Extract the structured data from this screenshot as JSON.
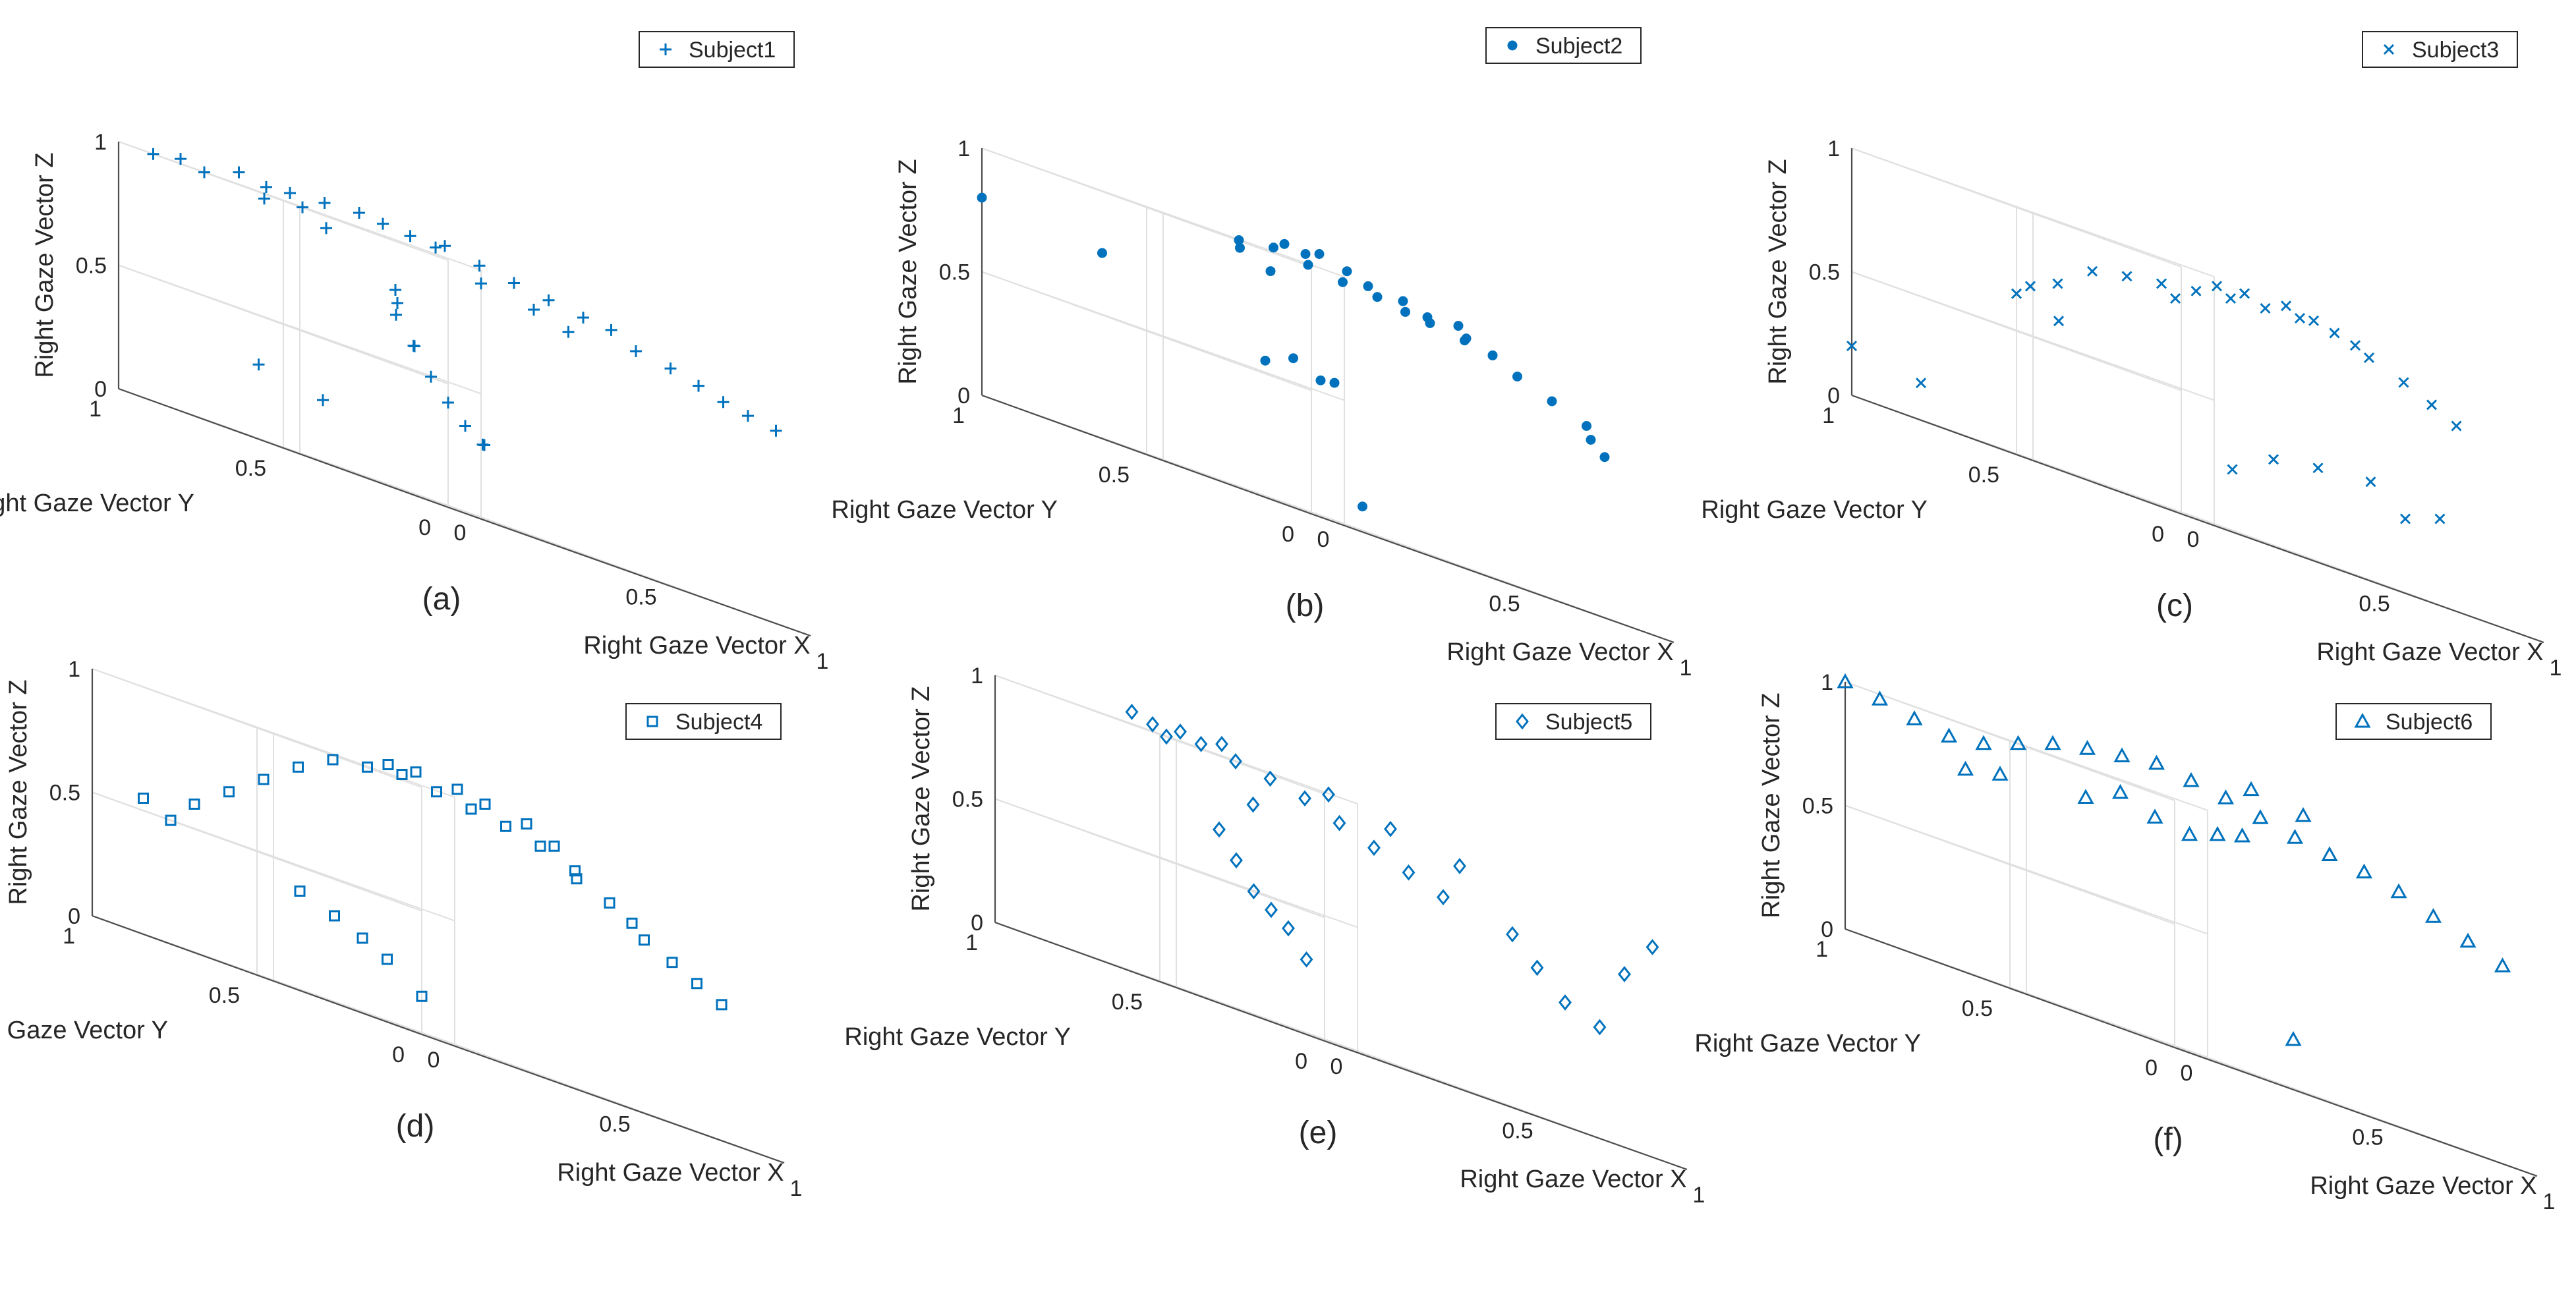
{
  "chart_data": [
    {
      "type": "scatter3d",
      "caption": "(a)",
      "legend": "Subject1",
      "marker": "plus",
      "xlabel": "Right Gaze Vector X",
      "ylabel": "Right Gaze Vector Y",
      "zlabel": "Right Gaze Vector Z",
      "xticks": [
        "0",
        "0.5",
        "1"
      ],
      "yticks": [
        "0",
        "0.5",
        "1"
      ],
      "zticks": [
        "0",
        "0.5",
        "1"
      ],
      "xlim": [
        0,
        1
      ],
      "ylim": [
        0,
        1
      ],
      "zlim": [
        0,
        1
      ],
      "points": [
        {
          "x": 0.05,
          "y": 0.95,
          "z": 1.0
        },
        {
          "x": 0.08,
          "y": 0.9,
          "z": 1.02
        },
        {
          "x": 0.1,
          "y": 0.85,
          "z": 1.0
        },
        {
          "x": 0.15,
          "y": 0.8,
          "z": 1.05
        },
        {
          "x": 0.18,
          "y": 0.75,
          "z": 1.03
        },
        {
          "x": 0.2,
          "y": 0.7,
          "z": 1.04
        },
        {
          "x": 0.25,
          "y": 0.65,
          "z": 1.05
        },
        {
          "x": 0.3,
          "y": 0.6,
          "z": 1.06
        },
        {
          "x": 0.32,
          "y": 0.55,
          "z": 1.05
        },
        {
          "x": 0.35,
          "y": 0.5,
          "z": 1.04
        },
        {
          "x": 0.4,
          "y": 0.45,
          "z": 1.05
        },
        {
          "x": 0.42,
          "y": 0.5,
          "z": 1.03
        },
        {
          "x": 0.45,
          "y": 0.4,
          "z": 1.02
        },
        {
          "x": 0.5,
          "y": 0.35,
          "z": 1.0
        },
        {
          "x": 0.55,
          "y": 0.3,
          "z": 0.98
        },
        {
          "x": 0.6,
          "y": 0.25,
          "z": 0.96
        },
        {
          "x": 0.65,
          "y": 0.22,
          "z": 0.95
        },
        {
          "x": 0.7,
          "y": 0.2,
          "z": 0.9
        },
        {
          "x": 0.75,
          "y": 0.15,
          "z": 0.88
        },
        {
          "x": 0.8,
          "y": 0.12,
          "z": 0.85
        },
        {
          "x": 0.85,
          "y": 0.1,
          "z": 0.82
        },
        {
          "x": 0.9,
          "y": 0.08,
          "z": 0.8
        },
        {
          "x": 0.95,
          "y": 0.05,
          "z": 0.78
        },
        {
          "x": 0.4,
          "y": 0.6,
          "z": 0.8
        },
        {
          "x": 0.42,
          "y": 0.62,
          "z": 0.7
        },
        {
          "x": 0.45,
          "y": 0.6,
          "z": 0.6
        },
        {
          "x": 0.48,
          "y": 0.58,
          "z": 0.5
        },
        {
          "x": 0.5,
          "y": 0.55,
          "z": 0.42
        },
        {
          "x": 0.52,
          "y": 0.52,
          "z": 0.35
        },
        {
          "x": 0.55,
          "y": 0.5,
          "z": 0.3
        },
        {
          "x": 0.3,
          "y": 0.7,
          "z": 0.95
        },
        {
          "x": 0.28,
          "y": 0.75,
          "z": 1.0
        },
        {
          "x": 0.22,
          "y": 0.8,
          "z": 0.98
        },
        {
          "x": 0.6,
          "y": 0.4,
          "z": 0.92
        },
        {
          "x": 0.65,
          "y": 0.35,
          "z": 0.88
        },
        {
          "x": 0.38,
          "y": 0.52,
          "z": 0.6
        },
        {
          "x": 0.36,
          "y": 0.55,
          "z": 0.75
        },
        {
          "x": 0.6,
          "y": 0.55,
          "z": 0.3
        },
        {
          "x": 0.2,
          "y": 0.6,
          "z": 0.25
        },
        {
          "x": 0.5,
          "y": 0.45,
          "z": 0.95
        },
        {
          "x": 0.25,
          "y": 0.85,
          "z": 0.3
        }
      ]
    },
    {
      "type": "scatter3d",
      "caption": "(b)",
      "legend": "Subject2",
      "marker": "dot",
      "xlabel": "Right Gaze Vector X",
      "ylabel": "Right Gaze Vector Y",
      "zlabel": "Right Gaze Vector Z",
      "xticks": [
        "0",
        "0.5",
        "1"
      ],
      "yticks": [
        "0",
        "0.5",
        "1"
      ],
      "zticks": [
        "0",
        "0.5",
        "1"
      ],
      "xlim": [
        0,
        1
      ],
      "ylim": [
        0,
        1
      ],
      "zlim": [
        0,
        1
      ],
      "points": [
        {
          "x": 0.3,
          "y": 0.55,
          "z": 1.0
        },
        {
          "x": 0.35,
          "y": 0.5,
          "z": 1.02
        },
        {
          "x": 0.4,
          "y": 0.45,
          "z": 1.0
        },
        {
          "x": 0.45,
          "y": 0.4,
          "z": 0.98
        },
        {
          "x": 0.5,
          "y": 0.35,
          "z": 0.97
        },
        {
          "x": 0.55,
          "y": 0.32,
          "z": 0.95
        },
        {
          "x": 0.6,
          "y": 0.3,
          "z": 0.94
        },
        {
          "x": 0.65,
          "y": 0.25,
          "z": 0.92
        },
        {
          "x": 0.7,
          "y": 0.22,
          "z": 0.9
        },
        {
          "x": 0.75,
          "y": 0.2,
          "z": 0.85
        },
        {
          "x": 0.8,
          "y": 0.15,
          "z": 0.8
        },
        {
          "x": 0.38,
          "y": 0.5,
          "z": 1.05
        },
        {
          "x": 0.42,
          "y": 0.48,
          "z": 1.04
        },
        {
          "x": 0.48,
          "y": 0.42,
          "z": 1.03
        },
        {
          "x": 0.52,
          "y": 0.4,
          "z": 1.0
        },
        {
          "x": 0.33,
          "y": 0.58,
          "z": 0.97
        },
        {
          "x": 0.58,
          "y": 0.36,
          "z": 0.99
        },
        {
          "x": 0.62,
          "y": 0.33,
          "z": 0.96
        },
        {
          "x": 0.7,
          "y": 0.3,
          "z": 0.93
        },
        {
          "x": 0.85,
          "y": 0.1,
          "z": 0.75
        },
        {
          "x": 0.88,
          "y": 0.12,
          "z": 0.7
        },
        {
          "x": 0.9,
          "y": 0.1,
          "z": 0.65
        },
        {
          "x": 0.45,
          "y": 0.55,
          "z": 0.6
        },
        {
          "x": 0.48,
          "y": 0.5,
          "z": 0.55
        },
        {
          "x": 0.5,
          "y": 0.48,
          "z": 0.56
        },
        {
          "x": 0.4,
          "y": 0.58,
          "z": 0.55
        },
        {
          "x": 0.0,
          "y": 1.0,
          "z": 0.8
        },
        {
          "x": 0.15,
          "y": 0.8,
          "z": 0.75
        },
        {
          "x": 0.55,
          "y": 0.45,
          "z": 0.1
        },
        {
          "x": 0.36,
          "y": 0.52,
          "z": 0.92
        },
        {
          "x": 0.44,
          "y": 0.46,
          "z": 1.06
        },
        {
          "x": 0.66,
          "y": 0.28,
          "z": 0.97
        }
      ]
    },
    {
      "type": "scatter3d",
      "caption": "(c)",
      "legend": "Subject3",
      "marker": "cross",
      "xlabel": "Right Gaze Vector X",
      "ylabel": "Right Gaze Vector Y",
      "zlabel": "Right Gaze Vector Z",
      "xticks": [
        "0",
        "0.5",
        "1"
      ],
      "yticks": [
        "0",
        "0.5",
        "1"
      ],
      "zticks": [
        "0",
        "0.5",
        "1"
      ],
      "xlim": [
        0,
        1
      ],
      "ylim": [
        0,
        1
      ],
      "zlim": [
        0,
        1
      ],
      "points": [
        {
          "x": 0.4,
          "y": 0.5,
          "z": 0.9
        },
        {
          "x": 0.45,
          "y": 0.45,
          "z": 0.92
        },
        {
          "x": 0.5,
          "y": 0.4,
          "z": 0.94
        },
        {
          "x": 0.55,
          "y": 0.35,
          "z": 0.95
        },
        {
          "x": 0.6,
          "y": 0.3,
          "z": 0.96
        },
        {
          "x": 0.65,
          "y": 0.25,
          "z": 0.95
        },
        {
          "x": 0.7,
          "y": 0.2,
          "z": 0.9
        },
        {
          "x": 0.75,
          "y": 0.15,
          "z": 0.85
        },
        {
          "x": 0.8,
          "y": 0.12,
          "z": 0.8
        },
        {
          "x": 0.85,
          "y": 0.1,
          "z": 0.75
        },
        {
          "x": 0.35,
          "y": 0.55,
          "z": 0.88
        },
        {
          "x": 0.3,
          "y": 0.6,
          "z": 0.85
        },
        {
          "x": 0.25,
          "y": 0.65,
          "z": 0.75
        },
        {
          "x": 0.22,
          "y": 0.7,
          "z": 0.7
        },
        {
          "x": 0.2,
          "y": 0.72,
          "z": 0.65
        },
        {
          "x": 0.28,
          "y": 0.68,
          "z": 0.6
        },
        {
          "x": 0.48,
          "y": 0.42,
          "z": 0.97
        },
        {
          "x": 0.52,
          "y": 0.38,
          "z": 0.98
        },
        {
          "x": 0.58,
          "y": 0.32,
          "z": 0.99
        },
        {
          "x": 0.62,
          "y": 0.28,
          "z": 0.97
        },
        {
          "x": 0.0,
          "y": 1.0,
          "z": 0.2
        },
        {
          "x": 0.1,
          "y": 0.9,
          "z": 0.15
        },
        {
          "x": 0.55,
          "y": 0.45,
          "z": 0.25
        },
        {
          "x": 0.6,
          "y": 0.38,
          "z": 0.35
        },
        {
          "x": 0.65,
          "y": 0.3,
          "z": 0.38
        },
        {
          "x": 0.75,
          "y": 0.25,
          "z": 0.4
        },
        {
          "x": 0.8,
          "y": 0.2,
          "z": 0.3
        },
        {
          "x": 0.85,
          "y": 0.15,
          "z": 0.35
        },
        {
          "x": 0.42,
          "y": 0.48,
          "z": 0.86
        },
        {
          "x": 0.68,
          "y": 0.22,
          "z": 0.93
        }
      ]
    },
    {
      "type": "scatter3d",
      "caption": "(d)",
      "legend": "Subject4",
      "marker": "square",
      "xlabel": "Right Gaze Vector X",
      "ylabel": "Right Gaze Vector Y",
      "zlabel": "Right Gaze Vector Z",
      "xticks": [
        "0",
        "0.5",
        "1"
      ],
      "yticks": [
        "0",
        "0.5",
        "1"
      ],
      "zticks": [
        "0",
        "0.5",
        "1"
      ],
      "xlim": [
        0,
        1
      ],
      "ylim": [
        0,
        1
      ],
      "zlim": [
        0,
        1
      ],
      "points": [
        {
          "x": 0.35,
          "y": 0.55,
          "z": 1.0
        },
        {
          "x": 0.4,
          "y": 0.5,
          "z": 1.02
        },
        {
          "x": 0.45,
          "y": 0.45,
          "z": 1.0
        },
        {
          "x": 0.5,
          "y": 0.4,
          "z": 0.98
        },
        {
          "x": 0.55,
          "y": 0.35,
          "z": 0.96
        },
        {
          "x": 0.6,
          "y": 0.3,
          "z": 0.93
        },
        {
          "x": 0.65,
          "y": 0.25,
          "z": 0.88
        },
        {
          "x": 0.7,
          "y": 0.2,
          "z": 0.8
        },
        {
          "x": 0.75,
          "y": 0.15,
          "z": 0.7
        },
        {
          "x": 0.8,
          "y": 0.12,
          "z": 0.65
        },
        {
          "x": 0.85,
          "y": 0.1,
          "z": 0.6
        },
        {
          "x": 0.9,
          "y": 0.08,
          "z": 0.55
        },
        {
          "x": 0.3,
          "y": 0.6,
          "z": 0.98
        },
        {
          "x": 0.25,
          "y": 0.65,
          "z": 0.9
        },
        {
          "x": 0.2,
          "y": 0.7,
          "z": 0.8
        },
        {
          "x": 0.15,
          "y": 0.75,
          "z": 0.7
        },
        {
          "x": 0.1,
          "y": 0.8,
          "z": 0.6
        },
        {
          "x": 0.05,
          "y": 0.9,
          "z": 0.55
        },
        {
          "x": 0.08,
          "y": 0.85,
          "z": 0.5
        },
        {
          "x": 0.3,
          "y": 0.7,
          "z": 0.4
        },
        {
          "x": 0.35,
          "y": 0.65,
          "z": 0.35
        },
        {
          "x": 0.4,
          "y": 0.62,
          "z": 0.3
        },
        {
          "x": 0.45,
          "y": 0.6,
          "z": 0.25
        },
        {
          "x": 0.5,
          "y": 0.55,
          "z": 0.15
        },
        {
          "x": 0.42,
          "y": 0.48,
          "z": 1.05
        },
        {
          "x": 0.48,
          "y": 0.42,
          "z": 1.04
        },
        {
          "x": 0.52,
          "y": 0.38,
          "z": 1.02
        },
        {
          "x": 0.58,
          "y": 0.32,
          "z": 1.0
        },
        {
          "x": 0.38,
          "y": 0.52,
          "z": 1.04
        },
        {
          "x": 0.62,
          "y": 0.28,
          "z": 0.95
        },
        {
          "x": 0.7,
          "y": 0.3,
          "z": 0.85
        },
        {
          "x": 0.78,
          "y": 0.22,
          "z": 0.75
        }
      ]
    },
    {
      "type": "scatter3d",
      "caption": "(e)",
      "legend": "Subject5",
      "marker": "diamond",
      "xlabel": "Right Gaze Vector X",
      "ylabel": "Right Gaze Vector Y",
      "zlabel": "Right Gaze Vector Z",
      "xticks": [
        "0",
        "0.5",
        "1"
      ],
      "yticks": [
        "0",
        "0.5",
        "1"
      ],
      "zticks": [
        "0",
        "0.5",
        "1"
      ],
      "xlim": [
        0,
        1
      ],
      "ylim": [
        0,
        1
      ],
      "zlim": [
        0,
        1
      ],
      "points": [
        {
          "x": 0.2,
          "y": 0.7,
          "z": 1.0
        },
        {
          "x": 0.25,
          "y": 0.65,
          "z": 1.02
        },
        {
          "x": 0.3,
          "y": 0.6,
          "z": 1.0
        },
        {
          "x": 0.35,
          "y": 0.55,
          "z": 0.98
        },
        {
          "x": 0.4,
          "y": 0.5,
          "z": 0.95
        },
        {
          "x": 0.45,
          "y": 0.45,
          "z": 0.9
        },
        {
          "x": 0.5,
          "y": 0.4,
          "z": 0.85
        },
        {
          "x": 0.55,
          "y": 0.35,
          "z": 0.8
        },
        {
          "x": 0.6,
          "y": 0.3,
          "z": 0.75
        },
        {
          "x": 0.3,
          "y": 0.65,
          "z": 0.7
        },
        {
          "x": 0.32,
          "y": 0.62,
          "z": 0.6
        },
        {
          "x": 0.35,
          "y": 0.6,
          "z": 0.5
        },
        {
          "x": 0.38,
          "y": 0.58,
          "z": 0.45
        },
        {
          "x": 0.4,
          "y": 0.55,
          "z": 0.4
        },
        {
          "x": 0.45,
          "y": 0.55,
          "z": 0.3
        },
        {
          "x": 0.7,
          "y": 0.2,
          "z": 0.7
        },
        {
          "x": 0.75,
          "y": 0.18,
          "z": 0.6
        },
        {
          "x": 0.8,
          "y": 0.15,
          "z": 0.5
        },
        {
          "x": 0.85,
          "y": 0.1,
          "z": 0.45
        },
        {
          "x": 0.9,
          "y": 0.08,
          "z": 0.7
        },
        {
          "x": 0.95,
          "y": 0.05,
          "z": 0.85
        },
        {
          "x": 0.15,
          "y": 0.75,
          "z": 1.05
        },
        {
          "x": 0.18,
          "y": 0.72,
          "z": 1.03
        },
        {
          "x": 0.22,
          "y": 0.68,
          "z": 1.04
        },
        {
          "x": 0.28,
          "y": 0.62,
          "z": 1.05
        },
        {
          "x": 0.42,
          "y": 0.45,
          "z": 1.0
        },
        {
          "x": 0.5,
          "y": 0.35,
          "z": 0.95
        },
        {
          "x": 0.6,
          "y": 0.25,
          "z": 0.9
        },
        {
          "x": 0.33,
          "y": 0.58,
          "z": 0.85
        }
      ]
    },
    {
      "type": "scatter3d",
      "caption": "(f)",
      "legend": "Subject6",
      "marker": "triangle",
      "xlabel": "Right Gaze Vector X",
      "ylabel": "Right Gaze Vector Y",
      "zlabel": "Right Gaze Vector Z",
      "xticks": [
        "0",
        "0.5",
        "1"
      ],
      "yticks": [
        "0",
        "0.5",
        "1"
      ],
      "zticks": [
        "0",
        "0.5",
        "1"
      ],
      "xlim": [
        0,
        1
      ],
      "ylim": [
        0,
        1
      ],
      "zlim": [
        0,
        1
      ],
      "points": [
        {
          "x": 0.0,
          "y": 1.0,
          "z": 1.0
        },
        {
          "x": 0.05,
          "y": 0.95,
          "z": 0.98
        },
        {
          "x": 0.1,
          "y": 0.9,
          "z": 0.95
        },
        {
          "x": 0.15,
          "y": 0.85,
          "z": 0.93
        },
        {
          "x": 0.2,
          "y": 0.8,
          "z": 0.95
        },
        {
          "x": 0.25,
          "y": 0.75,
          "z": 1.0
        },
        {
          "x": 0.3,
          "y": 0.7,
          "z": 1.05
        },
        {
          "x": 0.35,
          "y": 0.65,
          "z": 1.08
        },
        {
          "x": 0.4,
          "y": 0.6,
          "z": 1.1
        },
        {
          "x": 0.45,
          "y": 0.55,
          "z": 1.12
        },
        {
          "x": 0.5,
          "y": 0.5,
          "z": 1.1
        },
        {
          "x": 0.55,
          "y": 0.45,
          "z": 1.08
        },
        {
          "x": 0.6,
          "y": 0.4,
          "z": 1.05
        },
        {
          "x": 0.65,
          "y": 0.35,
          "z": 1.02
        },
        {
          "x": 0.7,
          "y": 0.3,
          "z": 1.0
        },
        {
          "x": 0.75,
          "y": 0.25,
          "z": 0.98
        },
        {
          "x": 0.8,
          "y": 0.2,
          "z": 0.95
        },
        {
          "x": 0.85,
          "y": 0.15,
          "z": 0.9
        },
        {
          "x": 0.9,
          "y": 0.1,
          "z": 0.85
        },
        {
          "x": 0.95,
          "y": 0.05,
          "z": 0.8
        },
        {
          "x": 0.35,
          "y": 0.55,
          "z": 0.95
        },
        {
          "x": 0.4,
          "y": 0.5,
          "z": 0.9
        },
        {
          "x": 0.45,
          "y": 0.45,
          "z": 0.88
        },
        {
          "x": 0.5,
          "y": 0.42,
          "z": 0.92
        },
        {
          "x": 0.55,
          "y": 0.4,
          "z": 0.95
        },
        {
          "x": 0.3,
          "y": 0.6,
          "z": 0.88
        },
        {
          "x": 0.2,
          "y": 0.75,
          "z": 0.85
        },
        {
          "x": 0.15,
          "y": 0.8,
          "z": 0.82
        },
        {
          "x": 0.62,
          "y": 0.45,
          "z": 1.15
        },
        {
          "x": 0.7,
          "y": 0.38,
          "z": 1.12
        },
        {
          "x": 0.6,
          "y": 0.3,
          "z": 0.2
        }
      ]
    }
  ]
}
